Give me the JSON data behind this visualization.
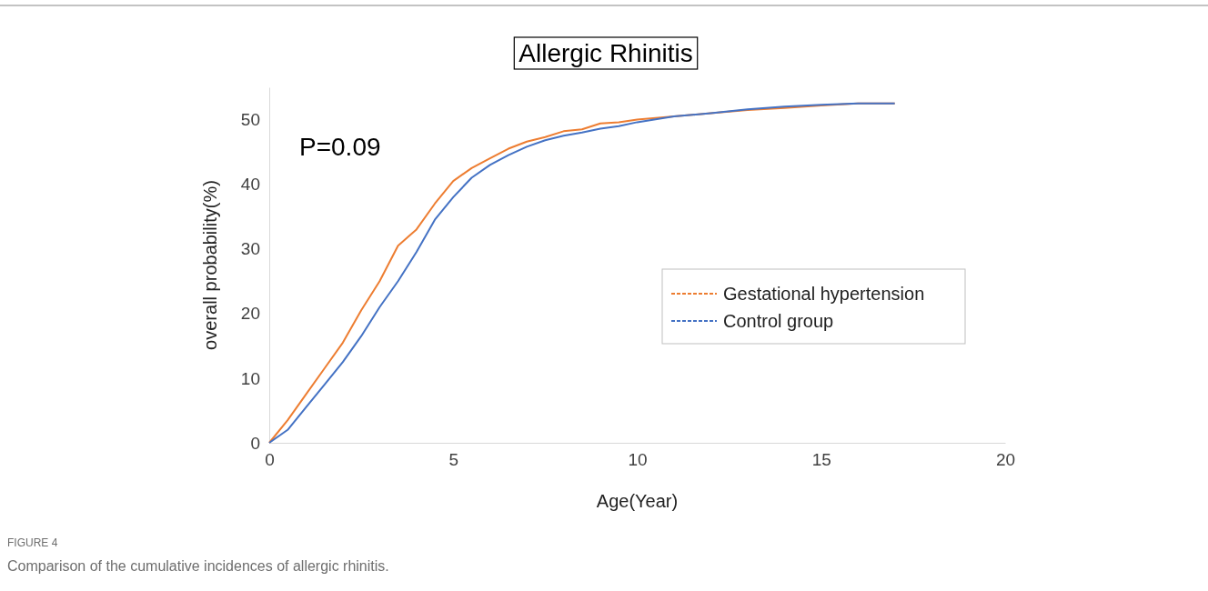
{
  "chart_data": {
    "type": "line",
    "title": "Allergic Rhinitis",
    "xlabel": "Age(Year)",
    "ylabel": "overall probability(%)",
    "xlim": [
      0,
      20
    ],
    "xticks": [
      0,
      5,
      10,
      15,
      20
    ],
    "ylim": [
      0,
      55
    ],
    "yticks": [
      0,
      10,
      20,
      30,
      40,
      50
    ],
    "grid": false,
    "legend": "right",
    "marker": "none",
    "line_style": "solid",
    "annotations": [
      {
        "text": "P=0.09"
      },
      "FIGURE 4",
      "Comparison of the cumulative incidences of allergic rhinitis."
    ],
    "series": [
      {
        "name": "Gestational hypertension",
        "color": "#ed7d31",
        "x": [
          0,
          0.5,
          1,
          1.5,
          2,
          2.5,
          3,
          3.5,
          4,
          4.5,
          5,
          5.5,
          6,
          6.5,
          7,
          7.5,
          8,
          8.5,
          9,
          9.5,
          10,
          11,
          12,
          13,
          14,
          15,
          16,
          17
        ],
        "values": [
          0,
          3.5,
          7.5,
          11.5,
          15.5,
          20.5,
          25,
          30.5,
          33,
          37,
          40.5,
          42.5,
          44,
          45.5,
          46.6,
          47.3,
          48.2,
          48.5,
          49.4,
          49.6,
          50,
          50.5,
          51,
          51.5,
          51.8,
          52.2,
          52.5,
          52.5
        ]
      },
      {
        "name": "Control group",
        "color": "#4472c4",
        "x": [
          0,
          0.5,
          1,
          1.5,
          2,
          2.5,
          3,
          3.5,
          4,
          4.5,
          5,
          5.5,
          6,
          6.5,
          7,
          7.5,
          8,
          8.5,
          9,
          9.5,
          10,
          11,
          12,
          13,
          14,
          15,
          16,
          17
        ],
        "values": [
          0,
          2,
          5.5,
          9,
          12.5,
          16.5,
          21,
          25,
          29.5,
          34.5,
          38,
          41,
          43,
          44.5,
          45.8,
          46.8,
          47.5,
          48,
          48.6,
          49,
          49.6,
          50.5,
          51,
          51.6,
          52,
          52.3,
          52.5,
          52.5
        ]
      }
    ]
  }
}
